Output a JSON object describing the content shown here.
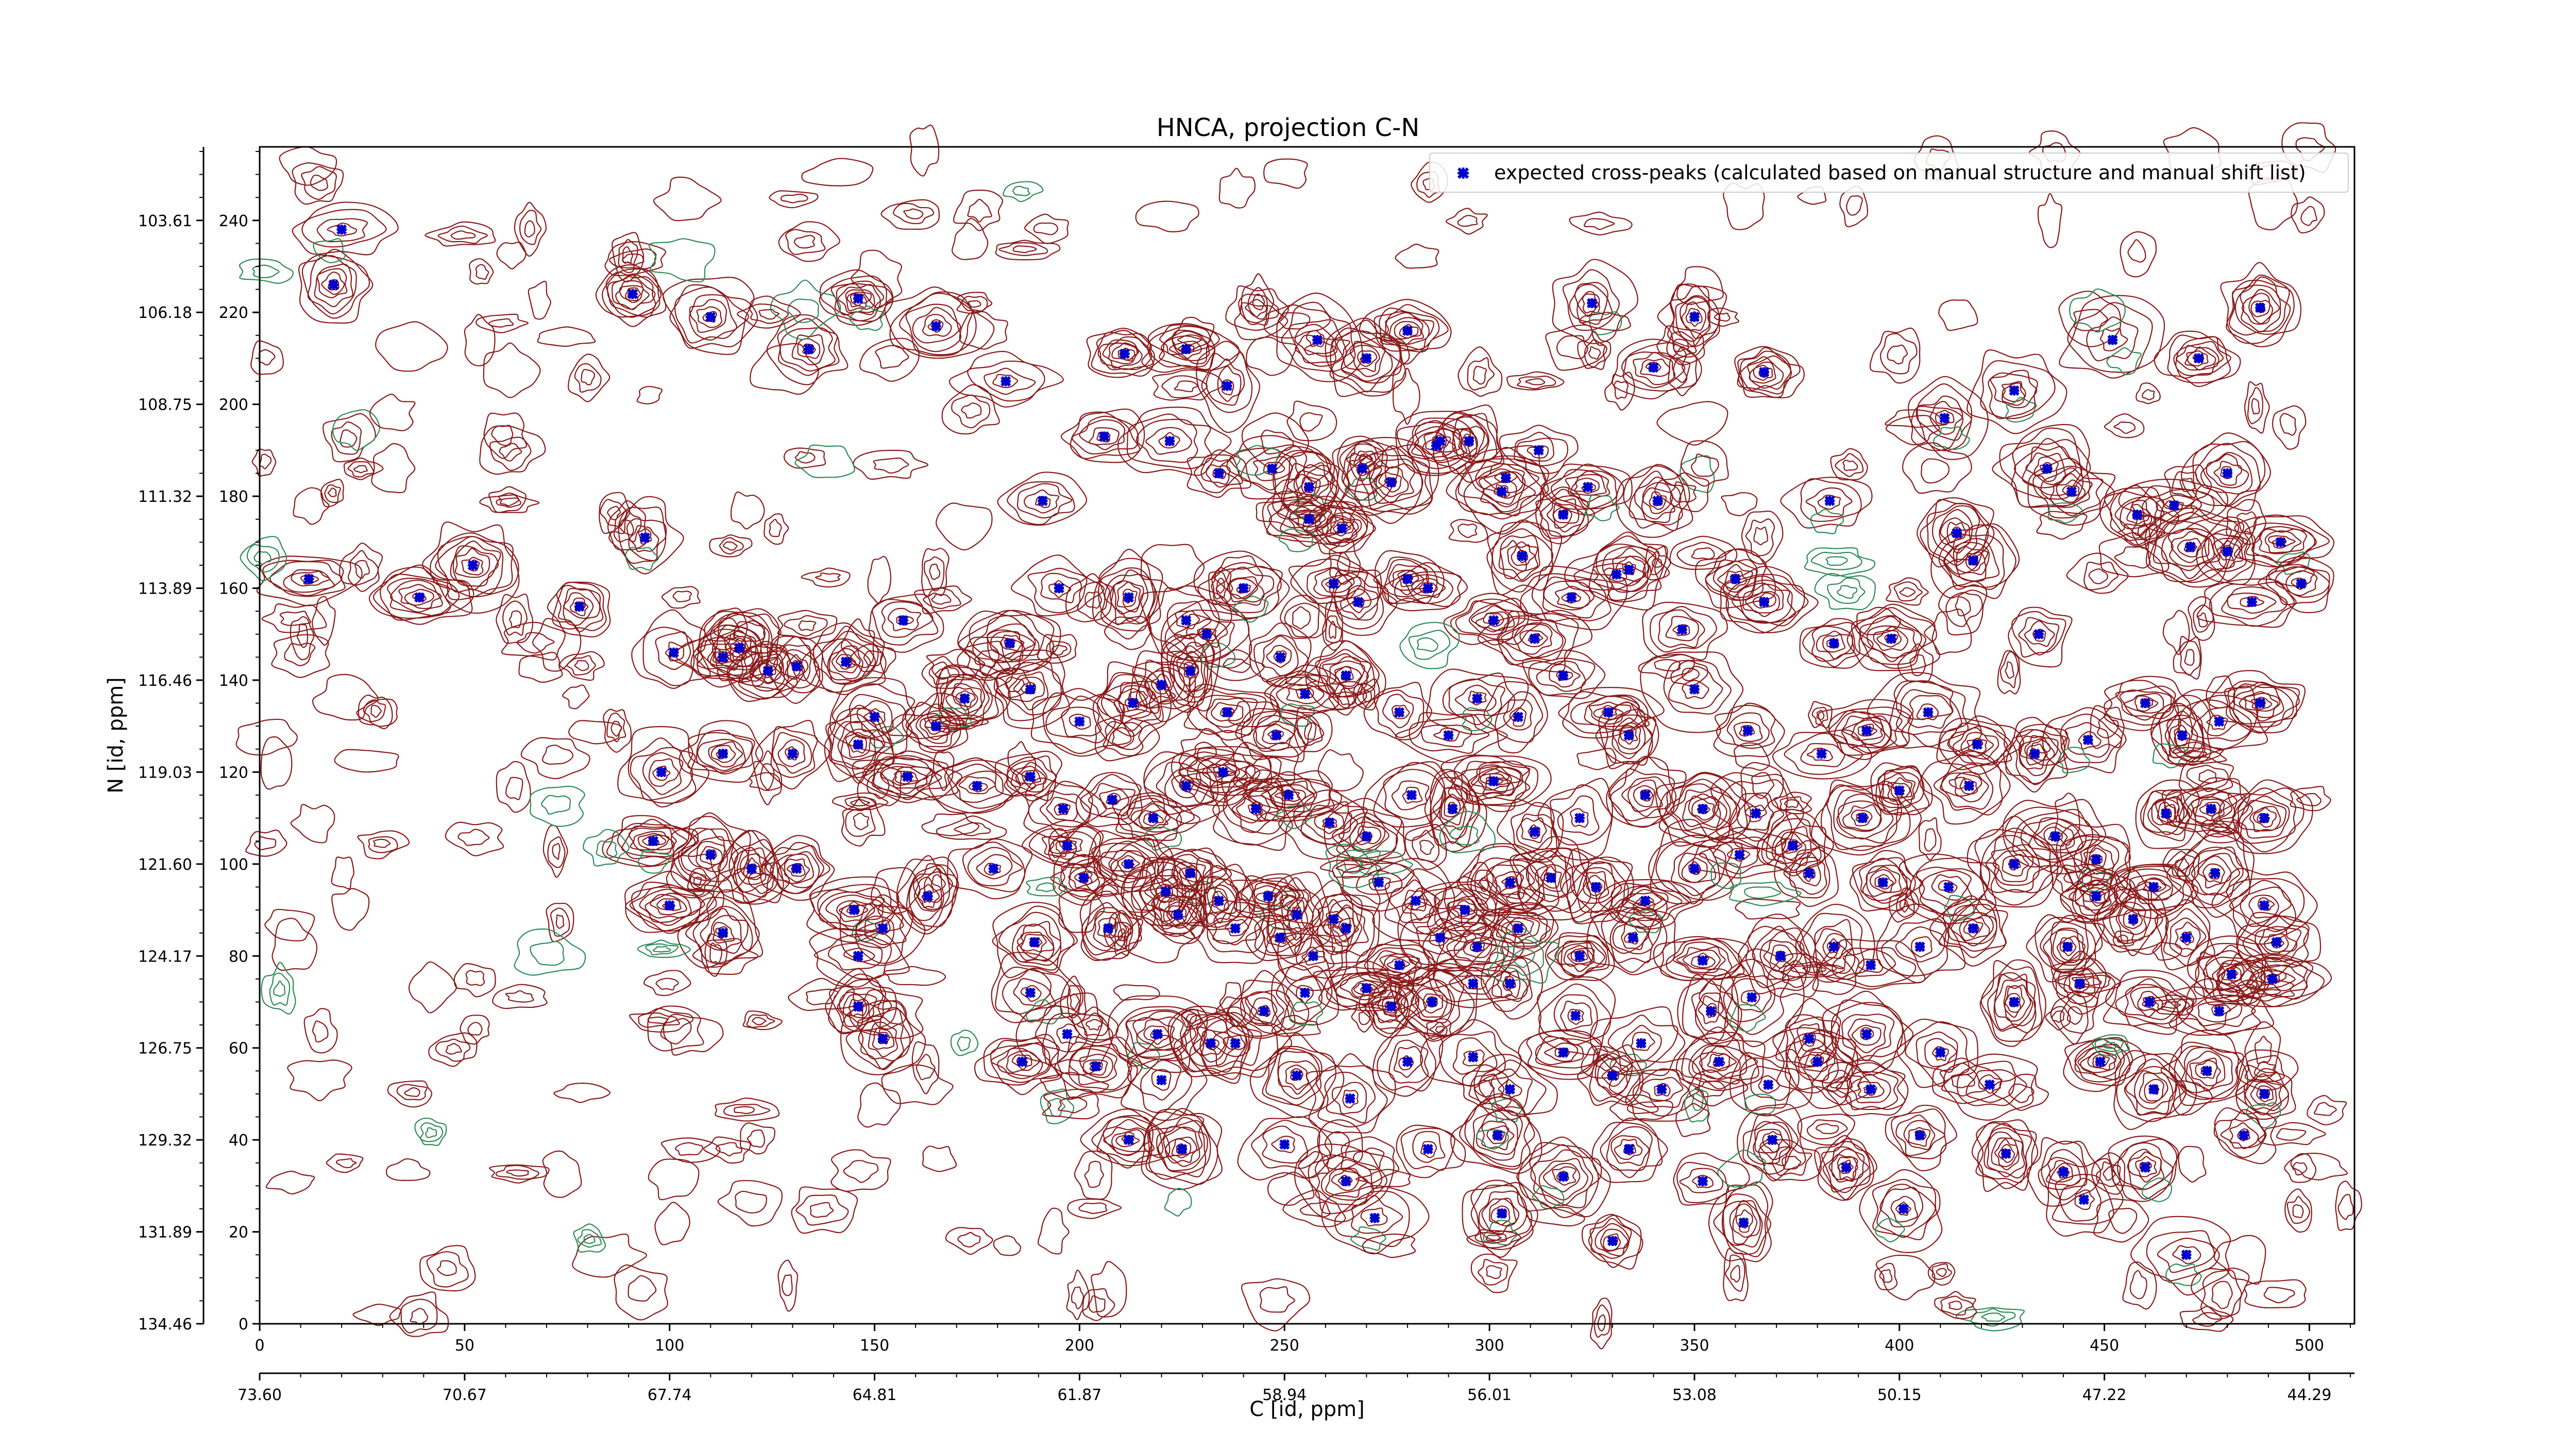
{
  "colors": {
    "contour_positive": "#8b1a1a",
    "contour_negative": "#2e8b57",
    "peak_marker": "#0000cc",
    "axis": "#000000"
  },
  "chart_data": {
    "type": "scatter",
    "title": "HNCA, projection C-N",
    "xlabel": "C [id, ppm]",
    "ylabel": "N [id, ppm]",
    "x_index_range": [
      0,
      511
    ],
    "y_index_range": [
      0,
      256
    ],
    "x_index_ticks": [
      0,
      50,
      100,
      150,
      200,
      250,
      300,
      350,
      400,
      450,
      500
    ],
    "x_ppm_ticks": [
      "73.60",
      "70.67",
      "67.74",
      "64.81",
      "61.87",
      "58.94",
      "56.01",
      "53.08",
      "50.15",
      "47.22",
      "44.29"
    ],
    "x_ppm_tick_index": [
      0,
      50,
      100,
      150,
      200,
      250,
      300,
      350,
      400,
      450,
      500
    ],
    "y_index_ticks": [
      0,
      20,
      40,
      60,
      80,
      100,
      120,
      140,
      160,
      180,
      200,
      220,
      240
    ],
    "y_ppm_ticks": [
      "134.46",
      "131.89",
      "129.32",
      "126.75",
      "124.17",
      "121.60",
      "119.03",
      "116.46",
      "113.89",
      "111.32",
      "108.75",
      "106.18",
      "103.61"
    ],
    "y_ppm_tick_index": [
      0,
      20,
      40,
      60,
      80,
      100,
      120,
      140,
      160,
      180,
      200,
      220,
      240
    ],
    "grid": false,
    "legend_position": "top-right",
    "series": [
      {
        "name": "expected cross-peaks (calculated based on manual structure and manual shift list)",
        "color": "#0000cc",
        "marker": "x",
        "points": [
          [
            18,
            226
          ],
          [
            20,
            238
          ],
          [
            91,
            224
          ],
          [
            110,
            219
          ],
          [
            146,
            223
          ],
          [
            165,
            217
          ],
          [
            134,
            212
          ],
          [
            182,
            205
          ],
          [
            211,
            211
          ],
          [
            226,
            212
          ],
          [
            236,
            204
          ],
          [
            258,
            214
          ],
          [
            270,
            210
          ],
          [
            280,
            216
          ],
          [
            287,
            191
          ],
          [
            295,
            192
          ],
          [
            303,
            181
          ],
          [
            325,
            222
          ],
          [
            312,
            190
          ],
          [
            340,
            208
          ],
          [
            350,
            219
          ],
          [
            367,
            207
          ],
          [
            411,
            197
          ],
          [
            428,
            203
          ],
          [
            452,
            214
          ],
          [
            473,
            210
          ],
          [
            488,
            221
          ],
          [
            191,
            179
          ],
          [
            206,
            193
          ],
          [
            222,
            192
          ],
          [
            234,
            185
          ],
          [
            247,
            186
          ],
          [
            256,
            182
          ],
          [
            256,
            175
          ],
          [
            264,
            173
          ],
          [
            269,
            186
          ],
          [
            276,
            183
          ],
          [
            288,
            192
          ],
          [
            304,
            184
          ],
          [
            308,
            167
          ],
          [
            318,
            176
          ],
          [
            324,
            182
          ],
          [
            334,
            164
          ],
          [
            341,
            179
          ],
          [
            360,
            162
          ],
          [
            383,
            179
          ],
          [
            414,
            172
          ],
          [
            436,
            186
          ],
          [
            442,
            181
          ],
          [
            458,
            176
          ],
          [
            467,
            178
          ],
          [
            480,
            185
          ],
          [
            12,
            162
          ],
          [
            39,
            158
          ],
          [
            52,
            165
          ],
          [
            78,
            156
          ],
          [
            94,
            171
          ],
          [
            117,
            147
          ],
          [
            143,
            144
          ],
          [
            157,
            153
          ],
          [
            183,
            148
          ],
          [
            195,
            160
          ],
          [
            212,
            158
          ],
          [
            226,
            153
          ],
          [
            231,
            150
          ],
          [
            240,
            160
          ],
          [
            249,
            145
          ],
          [
            262,
            161
          ],
          [
            268,
            157
          ],
          [
            280,
            162
          ],
          [
            285,
            160
          ],
          [
            301,
            153
          ],
          [
            311,
            149
          ],
          [
            320,
            158
          ],
          [
            331,
            163
          ],
          [
            347,
            151
          ],
          [
            367,
            157
          ],
          [
            384,
            148
          ],
          [
            398,
            149
          ],
          [
            418,
            166
          ],
          [
            434,
            150
          ],
          [
            471,
            169
          ],
          [
            480,
            168
          ],
          [
            486,
            157
          ],
          [
            493,
            170
          ],
          [
            498,
            161
          ],
          [
            101,
            146
          ],
          [
            113,
            145
          ],
          [
            124,
            142
          ],
          [
            131,
            143
          ],
          [
            150,
            132
          ],
          [
            165,
            130
          ],
          [
            172,
            136
          ],
          [
            188,
            138
          ],
          [
            200,
            131
          ],
          [
            213,
            135
          ],
          [
            220,
            139
          ],
          [
            227,
            142
          ],
          [
            236,
            133
          ],
          [
            248,
            128
          ],
          [
            255,
            137
          ],
          [
            265,
            141
          ],
          [
            278,
            133
          ],
          [
            290,
            128
          ],
          [
            297,
            136
          ],
          [
            307,
            132
          ],
          [
            318,
            141
          ],
          [
            329,
            133
          ],
          [
            334,
            128
          ],
          [
            350,
            138
          ],
          [
            363,
            129
          ],
          [
            381,
            124
          ],
          [
            392,
            129
          ],
          [
            407,
            133
          ],
          [
            419,
            126
          ],
          [
            433,
            124
          ],
          [
            446,
            127
          ],
          [
            460,
            135
          ],
          [
            469,
            128
          ],
          [
            478,
            131
          ],
          [
            488,
            135
          ],
          [
            98,
            120
          ],
          [
            113,
            124
          ],
          [
            130,
            124
          ],
          [
            146,
            126
          ],
          [
            158,
            119
          ],
          [
            175,
            117
          ],
          [
            188,
            119
          ],
          [
            196,
            112
          ],
          [
            208,
            114
          ],
          [
            218,
            110
          ],
          [
            226,
            117
          ],
          [
            235,
            120
          ],
          [
            243,
            112
          ],
          [
            251,
            115
          ],
          [
            261,
            109
          ],
          [
            270,
            106
          ],
          [
            281,
            115
          ],
          [
            291,
            112
          ],
          [
            301,
            118
          ],
          [
            311,
            107
          ],
          [
            322,
            110
          ],
          [
            338,
            115
          ],
          [
            352,
            112
          ],
          [
            365,
            111
          ],
          [
            374,
            104
          ],
          [
            391,
            110
          ],
          [
            400,
            116
          ],
          [
            417,
            117
          ],
          [
            438,
            106
          ],
          [
            448,
            101
          ],
          [
            465,
            111
          ],
          [
            476,
            112
          ],
          [
            489,
            110
          ],
          [
            96,
            105
          ],
          [
            110,
            102
          ],
          [
            120,
            99
          ],
          [
            131,
            99
          ],
          [
            145,
            90
          ],
          [
            163,
            93
          ],
          [
            179,
            99
          ],
          [
            197,
            104
          ],
          [
            201,
            97
          ],
          [
            212,
            100
          ],
          [
            221,
            94
          ],
          [
            227,
            98
          ],
          [
            234,
            92
          ],
          [
            246,
            93
          ],
          [
            253,
            89
          ],
          [
            262,
            88
          ],
          [
            273,
            96
          ],
          [
            282,
            92
          ],
          [
            294,
            90
          ],
          [
            305,
            96
          ],
          [
            315,
            97
          ],
          [
            326,
            95
          ],
          [
            338,
            92
          ],
          [
            350,
            99
          ],
          [
            361,
            102
          ],
          [
            378,
            98
          ],
          [
            396,
            96
          ],
          [
            412,
            95
          ],
          [
            428,
            100
          ],
          [
            448,
            93
          ],
          [
            462,
            95
          ],
          [
            477,
            98
          ],
          [
            489,
            91
          ],
          [
            100,
            91
          ],
          [
            113,
            85
          ],
          [
            146,
            80
          ],
          [
            152,
            86
          ],
          [
            189,
            83
          ],
          [
            207,
            86
          ],
          [
            224,
            89
          ],
          [
            238,
            86
          ],
          [
            249,
            84
          ],
          [
            257,
            80
          ],
          [
            265,
            86
          ],
          [
            278,
            78
          ],
          [
            288,
            84
          ],
          [
            297,
            82
          ],
          [
            307,
            86
          ],
          [
            322,
            80
          ],
          [
            335,
            84
          ],
          [
            352,
            79
          ],
          [
            371,
            80
          ],
          [
            384,
            82
          ],
          [
            393,
            78
          ],
          [
            405,
            82
          ],
          [
            418,
            86
          ],
          [
            441,
            82
          ],
          [
            457,
            88
          ],
          [
            470,
            84
          ],
          [
            481,
            76
          ],
          [
            492,
            83
          ],
          [
            146,
            69
          ],
          [
            152,
            62
          ],
          [
            188,
            72
          ],
          [
            197,
            63
          ],
          [
            219,
            63
          ],
          [
            232,
            61
          ],
          [
            245,
            68
          ],
          [
            255,
            72
          ],
          [
            270,
            73
          ],
          [
            276,
            69
          ],
          [
            286,
            70
          ],
          [
            296,
            74
          ],
          [
            305,
            74
          ],
          [
            321,
            67
          ],
          [
            337,
            61
          ],
          [
            354,
            68
          ],
          [
            364,
            71
          ],
          [
            378,
            62
          ],
          [
            392,
            63
          ],
          [
            410,
            59
          ],
          [
            428,
            70
          ],
          [
            444,
            74
          ],
          [
            461,
            70
          ],
          [
            478,
            68
          ],
          [
            491,
            75
          ],
          [
            186,
            57
          ],
          [
            204,
            56
          ],
          [
            220,
            53
          ],
          [
            238,
            61
          ],
          [
            253,
            54
          ],
          [
            266,
            49
          ],
          [
            280,
            57
          ],
          [
            296,
            58
          ],
          [
            305,
            51
          ],
          [
            318,
            59
          ],
          [
            330,
            54
          ],
          [
            342,
            51
          ],
          [
            356,
            57
          ],
          [
            368,
            52
          ],
          [
            380,
            57
          ],
          [
            393,
            51
          ],
          [
            422,
            52
          ],
          [
            449,
            57
          ],
          [
            462,
            51
          ],
          [
            475,
            55
          ],
          [
            489,
            50
          ],
          [
            212,
            40
          ],
          [
            225,
            38
          ],
          [
            250,
            39
          ],
          [
            265,
            31
          ],
          [
            285,
            38
          ],
          [
            302,
            41
          ],
          [
            318,
            32
          ],
          [
            334,
            38
          ],
          [
            352,
            31
          ],
          [
            369,
            40
          ],
          [
            387,
            34
          ],
          [
            405,
            41
          ],
          [
            426,
            37
          ],
          [
            440,
            33
          ],
          [
            460,
            34
          ],
          [
            484,
            41
          ],
          [
            272,
            23
          ],
          [
            303,
            24
          ],
          [
            330,
            18
          ],
          [
            362,
            22
          ],
          [
            401,
            25
          ],
          [
            445,
            27
          ],
          [
            470,
            15
          ]
        ]
      }
    ]
  }
}
